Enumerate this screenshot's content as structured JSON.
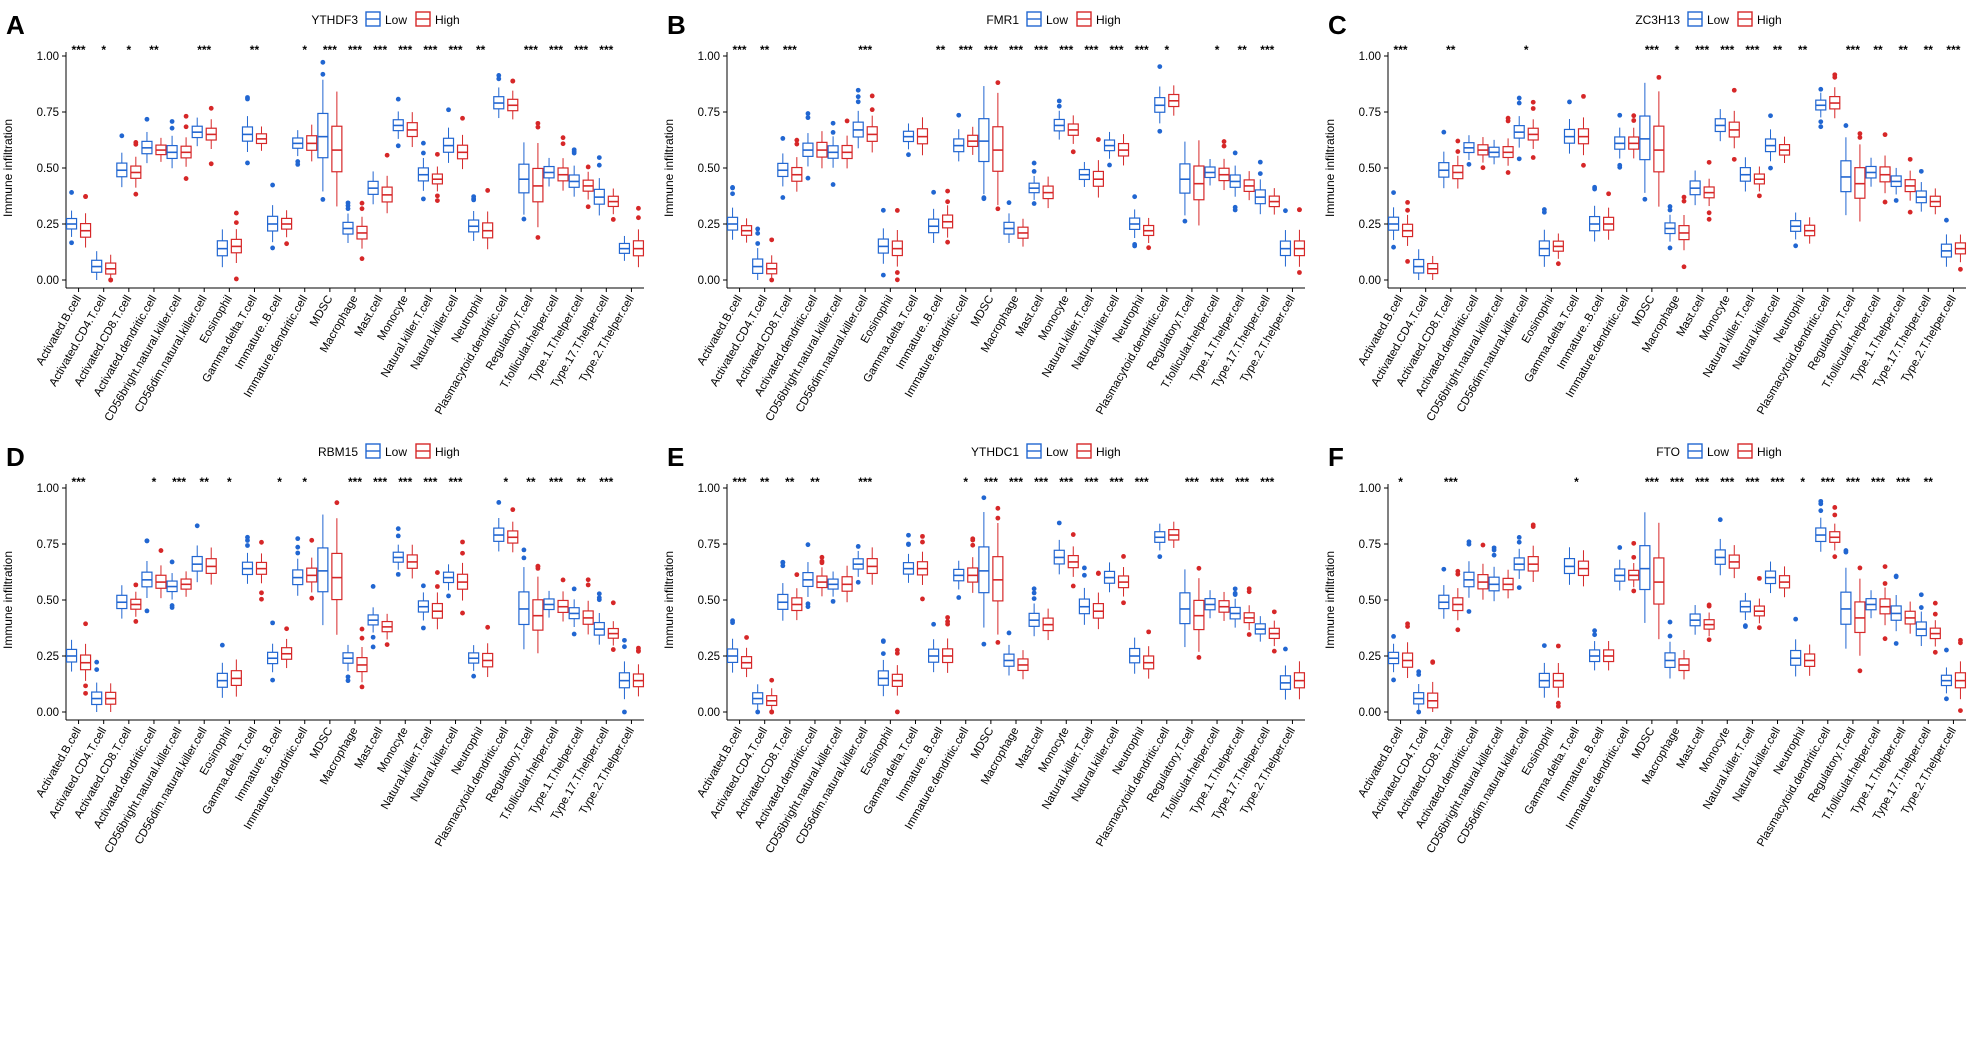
{
  "figure": {
    "legend_low": "Low",
    "legend_high": "High",
    "y_axis_label": "Immune infiltration",
    "colors": {
      "low": "#2166D1",
      "high": "#D62728",
      "axis": "#000000"
    }
  },
  "chart_data": [
    {
      "type": "boxplot",
      "panel_letter": "A",
      "gene": "YTHDF3",
      "xlabel": "",
      "ylabel": "Immune infiltration",
      "ylim": [
        0,
        1
      ],
      "yticks": [
        "0.00",
        "0.25",
        "0.50",
        "0.75",
        "1.00"
      ],
      "categories": [
        "Activated.B.cell",
        "Activated.CD4.T.cell",
        "Activated.CD8.T.cell",
        "Activated.dendritic.cell",
        "CD56bright.natural.killer.cell",
        "CD56dim.natural.killer.cell",
        "Eosinophil",
        "Gamma.delta.T.cell",
        "Immature..B.cell",
        "Immature.dendritic.cell",
        "MDSC",
        "Macrophage",
        "Mast.cell",
        "Monocyte",
        "Natural.killer.T.cell",
        "Natural.killer.cell",
        "Neutrophil",
        "Plasmacytoid.dendritic.cell",
        "Regulatory.T.cell",
        "T.follicular.helper.cell",
        "Type.1.T.helper.cell",
        "Type.17.T.helper.cell",
        "Type.2.T.helper.cell"
      ],
      "significance": [
        "***",
        "*",
        "*",
        "**",
        "",
        "***",
        "",
        "**",
        "",
        "*",
        "***",
        "***",
        "***",
        "***",
        "***",
        "***",
        "**",
        "",
        "***",
        "***",
        "***",
        "***",
        ""
      ],
      "series": [
        {
          "name": "Low",
          "medians": [
            0.25,
            0.06,
            0.49,
            0.59,
            0.57,
            0.66,
            0.14,
            0.65,
            0.25,
            0.61,
            0.64,
            0.23,
            0.41,
            0.69,
            0.47,
            0.6,
            0.24,
            0.79,
            0.45,
            0.48,
            0.44,
            0.37,
            0.14
          ]
        },
        {
          "name": "High",
          "medians": [
            0.22,
            0.05,
            0.48,
            0.58,
            0.57,
            0.65,
            0.15,
            0.63,
            0.25,
            0.61,
            0.58,
            0.21,
            0.38,
            0.67,
            0.45,
            0.57,
            0.22,
            0.78,
            0.42,
            0.47,
            0.42,
            0.35,
            0.14
          ]
        }
      ]
    },
    {
      "type": "boxplot",
      "panel_letter": "B",
      "gene": "FMR1",
      "xlabel": "",
      "ylabel": "Immune infiltration",
      "ylim": [
        0,
        1
      ],
      "yticks": [
        "0.00",
        "0.25",
        "0.50",
        "0.75",
        "1.00"
      ],
      "categories": [
        "Activated.B.cell",
        "Activated.CD4.T.cell",
        "Activated.CD8.T.cell",
        "Activated.dendritic.cell",
        "CD56bright.natural.killer.cell",
        "CD56dim.natural.killer.cell",
        "Eosinophil",
        "Gamma.delta.T.cell",
        "Immature..B.cell",
        "Immature.dendritic.cell",
        "MDSC",
        "Macrophage",
        "Mast.cell",
        "Monocyte",
        "Natural.killer.T.cell",
        "Natural.killer.cell",
        "Neutrophil",
        "Plasmacytoid.dendritic.cell",
        "Regulatory.T.cell",
        "T.follicular.helper.cell",
        "Type.1.T.helper.cell",
        "Type.17.T.helper.cell",
        "Type.2.T.helper.cell"
      ],
      "significance": [
        "***",
        "**",
        "***",
        "",
        "",
        "***",
        "",
        "",
        "**",
        "***",
        "***",
        "***",
        "***",
        "***",
        "***",
        "***",
        "***",
        "*",
        "",
        "*",
        "**",
        "***",
        ""
      ],
      "series": [
        {
          "name": "Low",
          "medians": [
            0.25,
            0.06,
            0.49,
            0.58,
            0.57,
            0.67,
            0.15,
            0.64,
            0.24,
            0.6,
            0.62,
            0.23,
            0.41,
            0.69,
            0.47,
            0.6,
            0.25,
            0.78,
            0.45,
            0.48,
            0.44,
            0.37,
            0.14
          ]
        },
        {
          "name": "High",
          "medians": [
            0.22,
            0.05,
            0.47,
            0.58,
            0.57,
            0.65,
            0.14,
            0.64,
            0.26,
            0.62,
            0.58,
            0.21,
            0.39,
            0.67,
            0.45,
            0.58,
            0.22,
            0.8,
            0.43,
            0.47,
            0.42,
            0.35,
            0.14
          ]
        }
      ]
    },
    {
      "type": "boxplot",
      "panel_letter": "C",
      "gene": "ZC3H13",
      "xlabel": "",
      "ylabel": "Immune infiltration",
      "ylim": [
        0,
        1
      ],
      "yticks": [
        "0.00",
        "0.25",
        "0.50",
        "0.75",
        "1.00"
      ],
      "categories": [
        "Activated.B.cell",
        "Activated.CD4.T.cell",
        "Activated.CD8.T.cell",
        "Activated.dendritic.cell",
        "CD56bright.natural.killer.cell",
        "CD56dim.natural.killer.cell",
        "Eosinophil",
        "Gamma.delta.T.cell",
        "Immature..B.cell",
        "Immature.dendritic.cell",
        "MDSC",
        "Macrophage",
        "Mast.cell",
        "Monocyte",
        "Natural.killer.T.cell",
        "Natural.killer.cell",
        "Neutrophil",
        "Plasmacytoid.dendritic.cell",
        "Regulatory.T.cell",
        "T.follicular.helper.cell",
        "Type.1.T.helper.cell",
        "Type.17.T.helper.cell",
        "Type.2.T.helper.cell"
      ],
      "significance": [
        "***",
        "",
        "**",
        "",
        "",
        "*",
        "",
        "",
        "",
        "",
        "***",
        "*",
        "***",
        "***",
        "***",
        "**",
        "**",
        "",
        "***",
        "**",
        "**",
        "**",
        "***"
      ],
      "series": [
        {
          "name": "Low",
          "medians": [
            0.25,
            0.06,
            0.49,
            0.59,
            0.57,
            0.66,
            0.14,
            0.64,
            0.25,
            0.61,
            0.63,
            0.23,
            0.41,
            0.69,
            0.47,
            0.6,
            0.24,
            0.78,
            0.46,
            0.48,
            0.44,
            0.37,
            0.13
          ]
        },
        {
          "name": "High",
          "medians": [
            0.22,
            0.05,
            0.48,
            0.58,
            0.57,
            0.65,
            0.15,
            0.64,
            0.25,
            0.61,
            0.58,
            0.21,
            0.39,
            0.67,
            0.45,
            0.58,
            0.22,
            0.79,
            0.43,
            0.47,
            0.42,
            0.35,
            0.14
          ]
        }
      ]
    },
    {
      "type": "boxplot",
      "panel_letter": "D",
      "gene": "RBM15",
      "xlabel": "",
      "ylabel": "Immune infiltration",
      "ylim": [
        0,
        1
      ],
      "yticks": [
        "0.00",
        "0.25",
        "0.50",
        "0.75",
        "1.00"
      ],
      "categories": [
        "Activated.B.cell",
        "Activated.CD4.T.cell",
        "Activated.CD8.T.cell",
        "Activated.dendritic.cell",
        "CD56bright.natural.killer.cell",
        "CD56dim.natural.killer.cell",
        "Eosinophil",
        "Gamma.delta.T.cell",
        "Immature..B.cell",
        "Immature.dendritic.cell",
        "MDSC",
        "Macrophage",
        "Mast.cell",
        "Monocyte",
        "Natural.killer.T.cell",
        "Natural.killer.cell",
        "Neutrophil",
        "Plasmacytoid.dendritic.cell",
        "Regulatory.T.cell",
        "T.follicular.helper.cell",
        "Type.1.T.helper.cell",
        "Type.17.T.helper.cell",
        "Type.2.T.helper.cell"
      ],
      "significance": [
        "***",
        "",
        "",
        "*",
        "***",
        "**",
        "*",
        "",
        "*",
        "*",
        "",
        "***",
        "***",
        "***",
        "***",
        "***",
        "",
        "*",
        "**",
        "***",
        "**",
        "***",
        ""
      ],
      "series": [
        {
          "name": "Low",
          "medians": [
            0.25,
            0.06,
            0.49,
            0.59,
            0.56,
            0.66,
            0.14,
            0.64,
            0.24,
            0.6,
            0.63,
            0.24,
            0.41,
            0.69,
            0.47,
            0.6,
            0.24,
            0.79,
            0.46,
            0.48,
            0.44,
            0.37,
            0.14
          ]
        },
        {
          "name": "High",
          "medians": [
            0.22,
            0.06,
            0.48,
            0.58,
            0.57,
            0.65,
            0.15,
            0.64,
            0.26,
            0.61,
            0.6,
            0.21,
            0.38,
            0.67,
            0.45,
            0.58,
            0.23,
            0.78,
            0.43,
            0.47,
            0.42,
            0.35,
            0.14
          ]
        }
      ]
    },
    {
      "type": "boxplot",
      "panel_letter": "E",
      "gene": "YTHDC1",
      "xlabel": "",
      "ylabel": "Immune infiltration",
      "ylim": [
        0,
        1
      ],
      "yticks": [
        "0.00",
        "0.25",
        "0.50",
        "0.75",
        "1.00"
      ],
      "categories": [
        "Activated.B.cell",
        "Activated.CD4.T.cell",
        "Activated.CD8.T.cell",
        "Activated.dendritic.cell",
        "CD56bright.natural.killer.cell",
        "CD56dim.natural.killer.cell",
        "Eosinophil",
        "Gamma.delta.T.cell",
        "Immature..B.cell",
        "Immature.dendritic.cell",
        "MDSC",
        "Macrophage",
        "Mast.cell",
        "Monocyte",
        "Natural.killer.T.cell",
        "Natural.killer.cell",
        "Neutrophil",
        "Plasmacytoid.dendritic.cell",
        "Regulatory.T.cell",
        "T.follicular.helper.cell",
        "Type.1.T.helper.cell",
        "Type.17.T.helper.cell",
        "Type.2.T.helper.cell"
      ],
      "significance": [
        "***",
        "**",
        "**",
        "**",
        "",
        "***",
        "",
        "",
        "",
        "*",
        "***",
        "***",
        "***",
        "***",
        "***",
        "***",
        "***",
        "",
        "***",
        "***",
        "***",
        "***",
        ""
      ],
      "series": [
        {
          "name": "Low",
          "medians": [
            0.25,
            0.06,
            0.49,
            0.59,
            0.57,
            0.66,
            0.15,
            0.64,
            0.25,
            0.61,
            0.63,
            0.23,
            0.41,
            0.69,
            0.47,
            0.6,
            0.25,
            0.78,
            0.46,
            0.48,
            0.44,
            0.37,
            0.13
          ]
        },
        {
          "name": "High",
          "medians": [
            0.22,
            0.05,
            0.48,
            0.58,
            0.57,
            0.65,
            0.14,
            0.64,
            0.25,
            0.61,
            0.59,
            0.21,
            0.39,
            0.67,
            0.45,
            0.58,
            0.22,
            0.79,
            0.43,
            0.47,
            0.42,
            0.35,
            0.14
          ]
        }
      ]
    },
    {
      "type": "boxplot",
      "panel_letter": "F",
      "gene": "FTO",
      "xlabel": "",
      "ylabel": "Immune infiltration",
      "ylim": [
        0,
        1
      ],
      "yticks": [
        "0.00",
        "0.25",
        "0.50",
        "0.75",
        "1.00"
      ],
      "categories": [
        "Activated.B.cell",
        "Activated.CD4.T.cell",
        "Activated.CD8.T.cell",
        "Activated.dendritic.cell",
        "CD56bright.natural.killer.cell",
        "CD56dim.natural.killer.cell",
        "Eosinophil",
        "Gamma.delta.T.cell",
        "Immature..B.cell",
        "Immature.dendritic.cell",
        "MDSC",
        "Macrophage",
        "Mast.cell",
        "Monocyte",
        "Natural.killer.T.cell",
        "Natural.killer.cell",
        "Neutrophil",
        "Plasmacytoid.dendritic.cell",
        "Regulatory.T.cell",
        "T.follicular.helper.cell",
        "Type.1.T.helper.cell",
        "Type.17.T.helper.cell",
        "Type.2.T.helper.cell"
      ],
      "significance": [
        "*",
        "",
        "***",
        "",
        "",
        "",
        "",
        "*",
        "",
        "",
        "***",
        "***",
        "***",
        "***",
        "***",
        "***",
        "*",
        "***",
        "***",
        "***",
        "***",
        "**",
        ""
      ],
      "series": [
        {
          "name": "Low",
          "medians": [
            0.24,
            0.06,
            0.49,
            0.59,
            0.57,
            0.66,
            0.14,
            0.65,
            0.25,
            0.61,
            0.64,
            0.23,
            0.41,
            0.69,
            0.47,
            0.6,
            0.24,
            0.79,
            0.46,
            0.48,
            0.44,
            0.37,
            0.14
          ]
        },
        {
          "name": "High",
          "medians": [
            0.23,
            0.05,
            0.48,
            0.58,
            0.57,
            0.66,
            0.14,
            0.64,
            0.25,
            0.61,
            0.58,
            0.21,
            0.39,
            0.67,
            0.45,
            0.58,
            0.23,
            0.78,
            0.42,
            0.47,
            0.42,
            0.35,
            0.14
          ]
        }
      ]
    }
  ]
}
